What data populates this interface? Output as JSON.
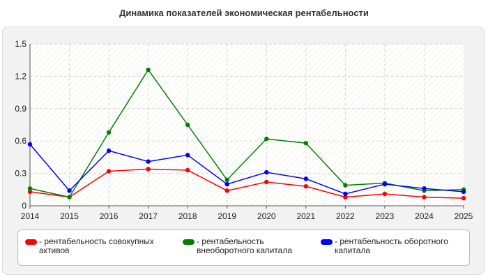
{
  "chart_data": {
    "type": "line",
    "title": "Динамика показателей экономическая рентабельности",
    "xlabel": "",
    "ylabel": "",
    "x": [
      "2014",
      "2015",
      "2016",
      "2017",
      "2018",
      "2019",
      "2020",
      "2021",
      "2022",
      "2023",
      "2024",
      "2025"
    ],
    "ylim": [
      0,
      1.5
    ],
    "yticks": [
      "0",
      "0.3",
      "0.6",
      "0.9",
      "1.2",
      "1.5"
    ],
    "grid": true,
    "legend_position": "bottom",
    "series": [
      {
        "name": "- рентабельность совокупных активов",
        "color": "#ff0000",
        "values": [
          0.13,
          0.08,
          0.32,
          0.34,
          0.33,
          0.14,
          0.22,
          0.18,
          0.08,
          0.11,
          0.08,
          0.07
        ]
      },
      {
        "name": "- рентабельность внеоборотного капитала",
        "color": "#008000",
        "values": [
          0.16,
          0.08,
          0.68,
          1.26,
          0.75,
          0.24,
          0.62,
          0.58,
          0.19,
          0.21,
          0.14,
          0.15
        ]
      },
      {
        "name": "- рентабельность оборотного капитала",
        "color": "#0000ff",
        "values": [
          0.57,
          0.14,
          0.51,
          0.41,
          0.47,
          0.2,
          0.31,
          0.25,
          0.11,
          0.2,
          0.16,
          0.13
        ]
      }
    ]
  },
  "legend": {
    "items": [
      {
        "line1": "- рентабельность совокупных",
        "line2": "активов"
      },
      {
        "line1": "- рентабельность",
        "line2": "внеоборотного капитала"
      },
      {
        "line1": "- рентабельность оборотного",
        "line2": "капитала"
      }
    ]
  }
}
